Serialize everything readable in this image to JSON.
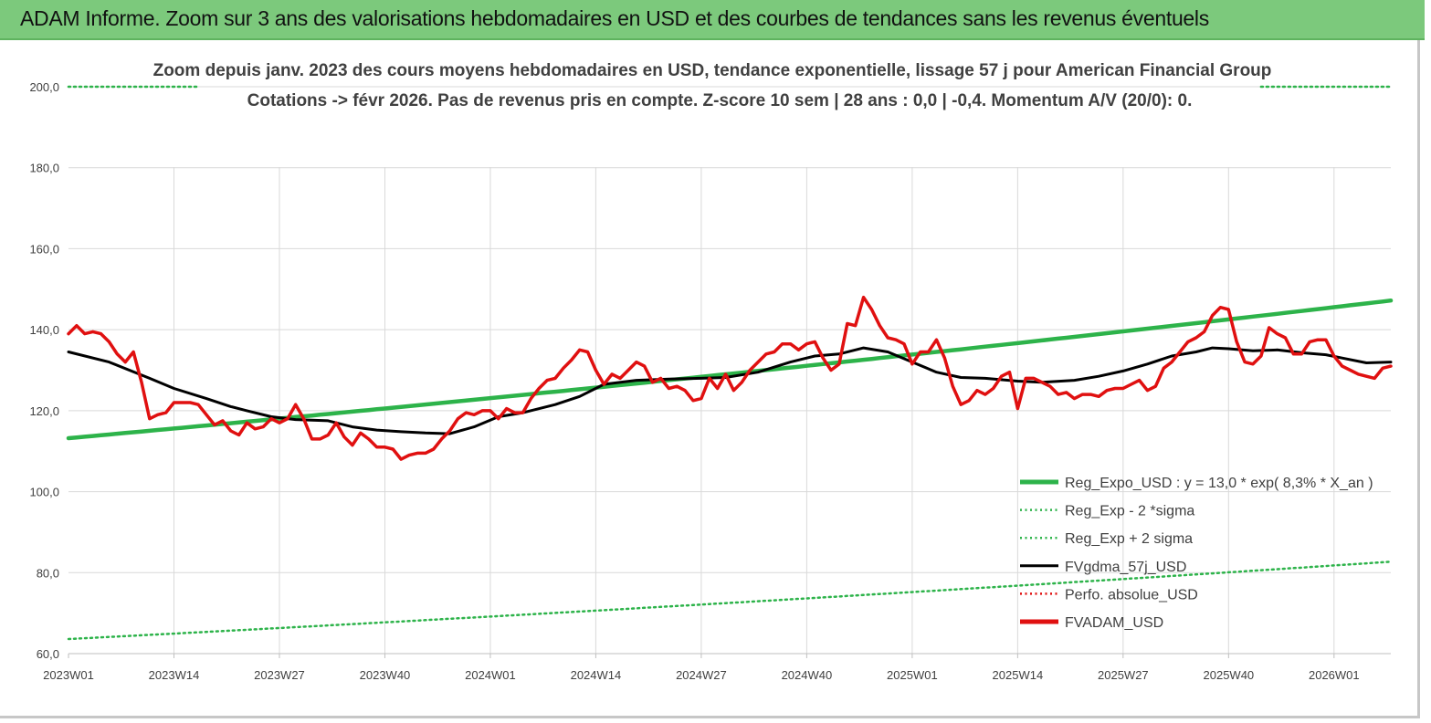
{
  "header": {
    "banner_title": "ADAM Informe. Zoom sur 3 ans des valorisations hebdomadaires en USD et des courbes de tendances sans les revenus éventuels"
  },
  "chart_data": {
    "type": "line",
    "title": "Zoom depuis janv. 2023 des cours moyens hebdomadaires en USD, tendance exponentielle, lissage 57 j pour American Financial Group",
    "subtitle": "Cotations -> févr 2026.  Pas de revenus pris en compte. Z-score 10 sem  | 28 ans : 0,0 | -0,4. Momentum A/V (20/0): 0.",
    "xlabel": "",
    "ylabel": "",
    "ylim": [
      60,
      200
    ],
    "y_ticks": [
      "60,0",
      "80,0",
      "100,0",
      "120,0",
      "140,0",
      "160,0",
      "180,0",
      "200,0"
    ],
    "x_ticks": [
      "2023W01",
      "2023W14",
      "2023W27",
      "2023W40",
      "2024W01",
      "2024W14",
      "2024W27",
      "2024W40",
      "2025W01",
      "2025W14",
      "2025W27",
      "2025W40",
      "2026W01"
    ],
    "grid": true,
    "legend_position": "bottom-right",
    "legend": [
      {
        "label": "Reg_Expo_USD : y = 13,0 * exp( 8,3% *  X_an )",
        "color": "#2db34a",
        "style": "solid-thick"
      },
      {
        "label": "Reg_Exp - 2 *sigma",
        "color": "#2db34a",
        "style": "dotted"
      },
      {
        "label": "Reg_Exp + 2 sigma",
        "color": "#2db34a",
        "style": "dotted"
      },
      {
        "label": "FVgdma_57j_USD",
        "color": "#000000",
        "style": "solid"
      },
      {
        "label": "Perfo. absolue_USD",
        "color": "#e01010",
        "style": "dotted"
      },
      {
        "label": "FVADAM_USD",
        "color": "#e01010",
        "style": "solid-thick"
      }
    ],
    "x_range_weeks": [
      0,
      163
    ],
    "series": [
      {
        "name": "Reg_Expo_USD : y = 13,0 * exp( 8,3% *  X_an )",
        "color": "#2db34a",
        "x": [
          0,
          163
        ],
        "values": [
          113.2,
          147.2
        ],
        "curve": "exponential"
      },
      {
        "name": "Reg_Exp - 2 *sigma",
        "color": "#2db34a",
        "x": [
          0,
          163
        ],
        "values": [
          63.6,
          82.7
        ],
        "curve": "exponential"
      },
      {
        "name": "Reg_Exp + 2 sigma",
        "color": "#2db34a",
        "x": [
          0,
          16,
          147,
          163
        ],
        "values": [
          200,
          200,
          200,
          200
        ],
        "segments": [
          [
            0,
            16
          ],
          [
            147,
            163
          ]
        ]
      },
      {
        "name": "FVgdma_57j_USD",
        "color": "#000000",
        "x": [
          0,
          5,
          10,
          13,
          17,
          20,
          22,
          25,
          28,
          32,
          35,
          38,
          41,
          44,
          47,
          50,
          53,
          56,
          60,
          63,
          66,
          70,
          74,
          78,
          81,
          85,
          89,
          92,
          95,
          98,
          101,
          104,
          107,
          110,
          113,
          117,
          120,
          124,
          127,
          130,
          133,
          136,
          139,
          141,
          143,
          146,
          149,
          152,
          155,
          157,
          160,
          163
        ],
        "values": [
          134.5,
          132.0,
          128.0,
          125.5,
          123.0,
          121.0,
          120.0,
          118.5,
          117.8,
          117.5,
          116.0,
          115.2,
          114.8,
          114.5,
          114.3,
          116.0,
          118.5,
          119.5,
          121.5,
          123.5,
          126.5,
          127.5,
          127.8,
          128.0,
          128.2,
          129.5,
          132.0,
          133.5,
          134.0,
          135.5,
          134.5,
          132.0,
          129.5,
          128.2,
          128.0,
          127.3,
          127.0,
          127.5,
          128.5,
          129.8,
          131.5,
          133.5,
          134.5,
          135.5,
          135.3,
          134.8,
          135.0,
          134.3,
          133.8,
          133.0,
          131.8,
          132.0
        ]
      },
      {
        "name": "FVADAM_USD",
        "color": "#e01010",
        "x": [
          0,
          1,
          2,
          3,
          4,
          5,
          6,
          7,
          8,
          9,
          10,
          11,
          12,
          13,
          14,
          15,
          16,
          17,
          18,
          19,
          20,
          21,
          22,
          23,
          24,
          25,
          26,
          27,
          28,
          29,
          30,
          31,
          32,
          33,
          34,
          35,
          36,
          37,
          38,
          39,
          40,
          41,
          42,
          43,
          44,
          45,
          46,
          47,
          48,
          49,
          50,
          51,
          52,
          53,
          54,
          55,
          56,
          57,
          58,
          59,
          60,
          61,
          62,
          63,
          64,
          65,
          66,
          67,
          68,
          69,
          70,
          71,
          72,
          73,
          74,
          75,
          76,
          77,
          78,
          79,
          80,
          81,
          82,
          83,
          84,
          85,
          86,
          87,
          88,
          89,
          90,
          91,
          92,
          93,
          94,
          95,
          96,
          97,
          98,
          99,
          100,
          101,
          102,
          103,
          104,
          105,
          106,
          107,
          108,
          109,
          110,
          111,
          112,
          113,
          114,
          115,
          116,
          117,
          118,
          119,
          120,
          121,
          122,
          123,
          124,
          125,
          126,
          127,
          128,
          129,
          130,
          131,
          132,
          133,
          134,
          135,
          136,
          137,
          138,
          139,
          140,
          141,
          142,
          143,
          144,
          145,
          146,
          147,
          148,
          149,
          150,
          151,
          152,
          153,
          154,
          155,
          156,
          157,
          158,
          159,
          160,
          161,
          162,
          163
        ],
        "values": [
          139.0,
          141.0,
          139.0,
          139.5,
          139.0,
          137.0,
          134.0,
          132.0,
          134.5,
          127.0,
          118.0,
          119.0,
          119.5,
          122.0,
          122.0,
          122.0,
          121.5,
          119.0,
          116.5,
          117.5,
          115.0,
          114.0,
          117.0,
          115.5,
          116.0,
          118.0,
          117.0,
          118.0,
          121.5,
          118.0,
          113.0,
          113.0,
          114.0,
          117.0,
          113.5,
          111.5,
          114.5,
          113.0,
          111.0,
          111.0,
          110.5,
          108.0,
          109.0,
          109.5,
          109.5,
          110.5,
          113.0,
          115.0,
          118.0,
          119.5,
          119.0,
          120.0,
          120.0,
          118.0,
          120.5,
          119.5,
          119.5,
          123.0,
          125.5,
          127.5,
          128.0,
          130.5,
          132.5,
          135.0,
          134.5,
          130.0,
          126.5,
          129.0,
          128.0,
          130.0,
          132.0,
          131.0,
          127.0,
          128.0,
          125.5,
          126.0,
          125.0,
          122.5,
          123.0,
          128.0,
          125.5,
          129.0,
          125.0,
          127.0,
          130.0,
          132.0,
          134.0,
          134.5,
          136.5,
          136.5,
          135.0,
          136.5,
          137.0,
          133.0,
          130.0,
          131.5,
          141.5,
          141.0,
          148.0,
          145.0,
          141.0,
          138.0,
          137.5,
          136.5,
          131.5,
          134.5,
          134.5,
          137.5,
          133.0,
          126.0,
          121.5,
          122.5,
          125.0,
          124.0,
          125.5,
          128.5,
          129.5,
          120.5,
          128.0,
          128.0,
          127.0,
          126.0,
          124.0,
          124.5,
          123.0,
          124.0,
          124.0,
          123.5,
          125.0,
          125.5,
          125.5,
          126.5,
          127.5,
          125.0,
          126.0,
          130.5,
          132.0,
          134.5,
          137.0,
          138.0,
          139.5,
          143.5,
          145.5,
          145.0,
          137.0,
          132.0,
          131.5,
          133.5,
          140.5,
          139.0,
          138.0,
          134.0,
          134.0,
          137.0,
          137.5,
          137.5,
          133.5,
          131.0,
          130.0,
          129.0,
          128.5,
          128.0,
          130.5,
          131.0
        ]
      }
    ]
  }
}
